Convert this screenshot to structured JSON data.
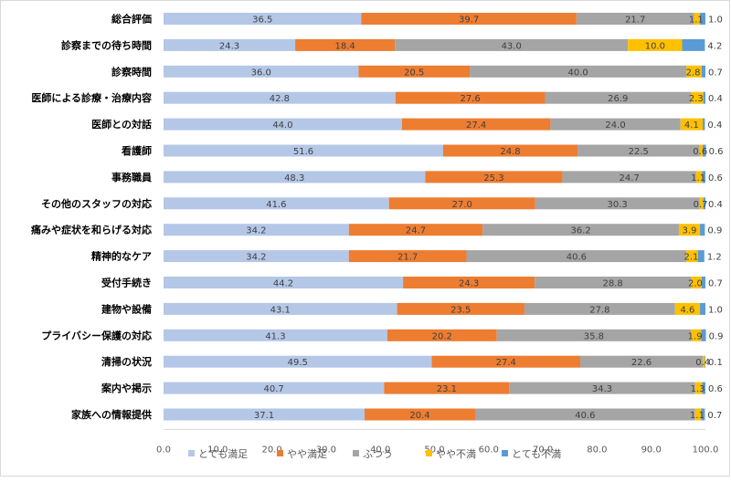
{
  "chart_data": {
    "type": "bar",
    "orientation": "horizontal",
    "stacked": true,
    "categories": [
      "総合評価",
      "診察までの待ち時間",
      "診察時間",
      "医師による診療・治療内容",
      "医師との対話",
      "看護師",
      "事務職員",
      "その他のスタッフの対応",
      "痛みや症状を和らげる対応",
      "精神的なケア",
      "受付手続き",
      "建物や設備",
      "プライバシー保護の対応",
      "清掃の状況",
      "案内や掲示",
      "家族への情報提供"
    ],
    "series": [
      {
        "name": "とても満足",
        "color": "#b4c7e7",
        "values": [
          36.5,
          24.3,
          36.0,
          42.8,
          44.0,
          51.6,
          48.3,
          41.6,
          34.2,
          34.2,
          44.2,
          43.1,
          41.3,
          49.5,
          40.7,
          37.1
        ]
      },
      {
        "name": "やや満足",
        "color": "#ed7d31",
        "values": [
          39.7,
          18.4,
          20.5,
          27.6,
          27.4,
          24.8,
          25.3,
          27.0,
          24.7,
          21.7,
          24.3,
          23.5,
          20.2,
          27.4,
          23.1,
          20.4
        ]
      },
      {
        "name": "ふつう",
        "color": "#a5a5a5",
        "values": [
          21.7,
          43.0,
          40.0,
          26.9,
          24.0,
          22.5,
          24.7,
          30.3,
          36.2,
          40.6,
          28.8,
          27.8,
          35.8,
          22.6,
          34.3,
          40.6
        ]
      },
      {
        "name": "やや不満",
        "color": "#ffc000",
        "values": [
          1.1,
          10.0,
          2.8,
          2.3,
          4.1,
          0.6,
          1.1,
          0.7,
          3.9,
          2.1,
          2.0,
          4.6,
          1.9,
          0.4,
          1.3,
          1.1
        ]
      },
      {
        "name": "とても不満",
        "color": "#5b9bd5",
        "values": [
          1.0,
          4.2,
          0.7,
          0.4,
          0.4,
          0.6,
          0.6,
          0.4,
          0.9,
          1.2,
          0.7,
          1.0,
          0.9,
          0.1,
          0.6,
          0.7
        ]
      }
    ],
    "xlim": [
      0,
      100
    ],
    "xticks": [
      "0.0",
      "10.0",
      "20.0",
      "30.0",
      "40.0",
      "50.0",
      "60.0",
      "70.0",
      "80.0",
      "90.0",
      "100.0"
    ],
    "grid": false,
    "legend": "bottom"
  }
}
